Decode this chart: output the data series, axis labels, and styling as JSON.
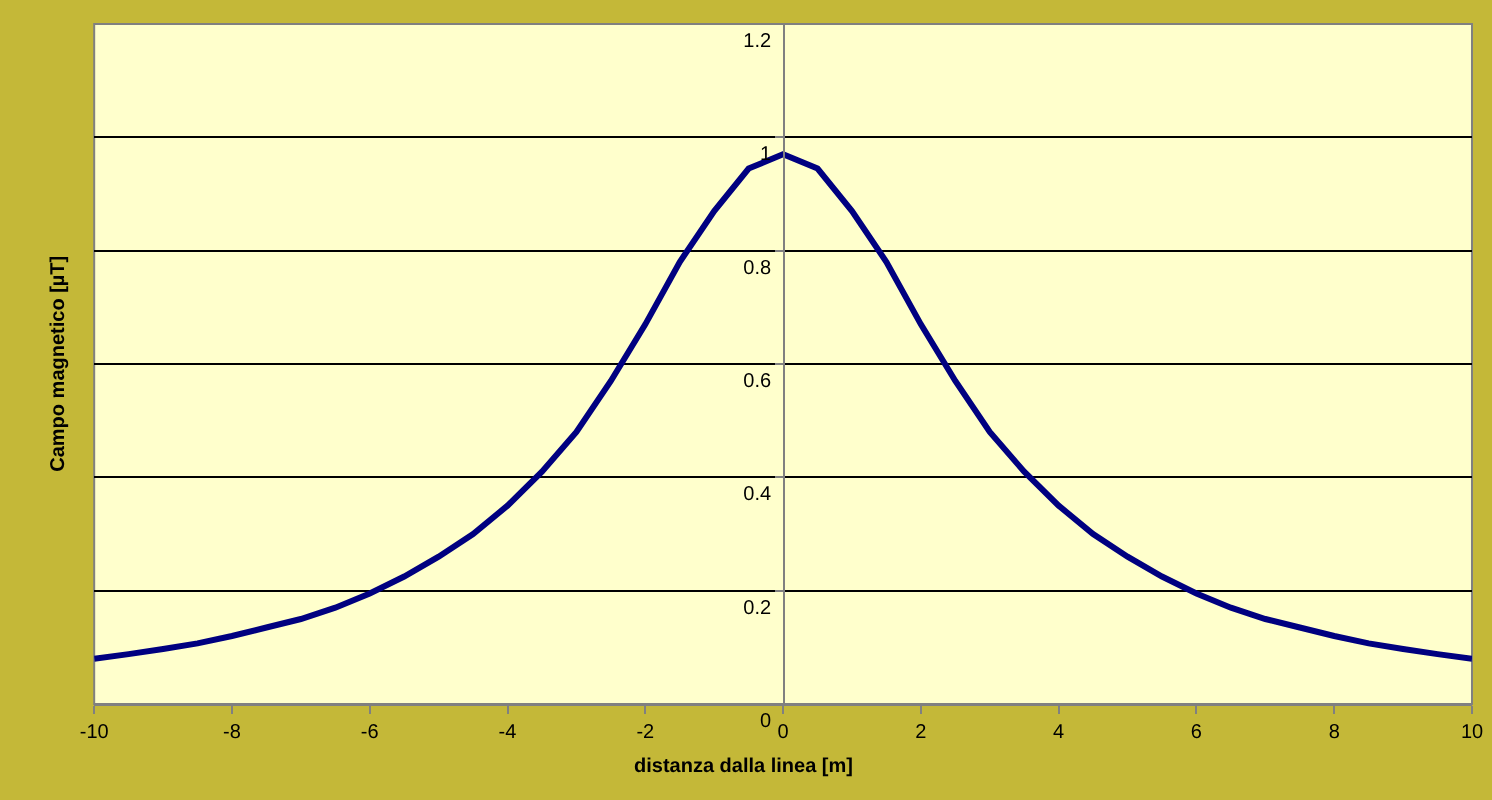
{
  "chart_data": {
    "type": "line",
    "xlabel": "distanza dalla linea [m]",
    "ylabel": "Campo magnetico [µT]",
    "x": [
      -10,
      -9.5,
      -9,
      -8.5,
      -8,
      -7.5,
      -7,
      -6.5,
      -6,
      -5.5,
      -5,
      -4.5,
      -4,
      -3.5,
      -3,
      -2.5,
      -2,
      -1.5,
      -1,
      -0.5,
      0,
      0.5,
      1,
      1.5,
      2,
      2.5,
      3,
      3.5,
      4,
      4.5,
      5,
      5.5,
      6,
      6.5,
      7,
      7.5,
      8,
      8.5,
      9,
      9.5,
      10
    ],
    "series": [
      {
        "color": "#000080",
        "values": [
          0.08,
          0.088,
          0.097,
          0.107,
          0.12,
          0.135,
          0.15,
          0.17,
          0.195,
          0.225,
          0.26,
          0.3,
          0.35,
          0.41,
          0.48,
          0.57,
          0.67,
          0.78,
          0.87,
          0.945,
          0.97,
          0.945,
          0.87,
          0.78,
          0.67,
          0.57,
          0.48,
          0.41,
          0.35,
          0.3,
          0.26,
          0.225,
          0.195,
          0.17,
          0.15,
          0.135,
          0.12,
          0.107,
          0.097,
          0.088,
          0.08
        ]
      }
    ],
    "xlim": [
      -10,
      10
    ],
    "ylim": [
      0,
      1.2
    ],
    "xticks": [
      -10,
      -8,
      -6,
      -4,
      -2,
      0,
      2,
      4,
      6,
      8,
      10
    ],
    "yticks": [
      0,
      0.2,
      0.4,
      0.6,
      0.8,
      1,
      1.2
    ],
    "grid": "y",
    "marker": "none",
    "line_style": "solid"
  }
}
